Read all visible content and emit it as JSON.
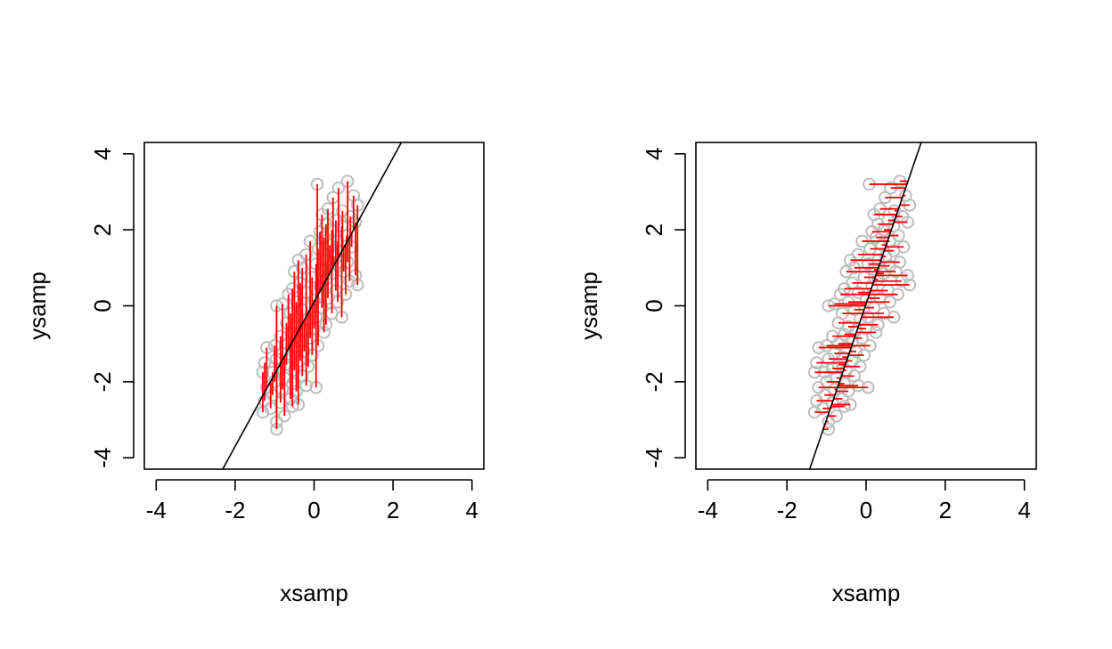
{
  "chart_data": [
    {
      "type": "scatter",
      "title": "",
      "xlabel": "xsamp",
      "ylabel": "ysamp",
      "xlim": [
        -4.3,
        4.3
      ],
      "ylim": [
        -4.3,
        4.3
      ],
      "xticks": [
        "-4",
        "-2",
        "0",
        "2",
        "4"
      ],
      "yticks": [
        "-4",
        "-2",
        "0",
        "2",
        "4"
      ],
      "grid": false,
      "legend": "none",
      "point_color": "#bebebe",
      "residual_color": "#ff0000",
      "line_color": "#000000",
      "fit_line": {
        "type": "regression of y on x",
        "slope": 1.9,
        "intercept": 0.1
      },
      "residuals": "vertical",
      "points": [
        [
          0.08,
          3.2
        ],
        [
          0.85,
          3.28
        ],
        [
          0.62,
          3.1
        ],
        [
          1.0,
          2.9
        ],
        [
          0.48,
          2.85
        ],
        [
          1.1,
          2.65
        ],
        [
          0.35,
          2.55
        ],
        [
          0.72,
          2.5
        ],
        [
          0.2,
          2.4
        ],
        [
          0.92,
          2.35
        ],
        [
          0.55,
          2.25
        ],
        [
          0.3,
          2.15
        ],
        [
          1.05,
          2.2
        ],
        [
          0.7,
          2.1
        ],
        [
          0.45,
          2.0
        ],
        [
          0.15,
          1.95
        ],
        [
          0.82,
          1.85
        ],
        [
          0.25,
          1.8
        ],
        [
          0.6,
          1.7
        ],
        [
          -0.1,
          1.7
        ],
        [
          0.4,
          1.6
        ],
        [
          0.95,
          1.55
        ],
        [
          0.1,
          1.5
        ],
        [
          0.7,
          1.45
        ],
        [
          -0.2,
          1.35
        ],
        [
          0.5,
          1.3
        ],
        [
          0.3,
          1.2
        ],
        [
          -0.4,
          1.2
        ],
        [
          0.85,
          1.15
        ],
        [
          0.05,
          1.1
        ],
        [
          0.6,
          1.05
        ],
        [
          -0.3,
          1.0
        ],
        [
          0.2,
          0.95
        ],
        [
          0.75,
          0.9
        ],
        [
          -0.5,
          0.9
        ],
        [
          0.45,
          0.85
        ],
        [
          1.05,
          0.8
        ],
        [
          -0.05,
          0.75
        ],
        [
          0.3,
          0.7
        ],
        [
          0.9,
          0.65
        ],
        [
          -0.35,
          0.6
        ],
        [
          1.1,
          0.55
        ],
        [
          0.15,
          0.5
        ],
        [
          -0.55,
          0.45
        ],
        [
          0.55,
          0.4
        ],
        [
          -0.2,
          0.35
        ],
        [
          0.8,
          0.3
        ],
        [
          -0.65,
          0.3
        ],
        [
          0.35,
          0.2
        ],
        [
          0.0,
          0.15
        ],
        [
          -0.45,
          0.1
        ],
        [
          0.6,
          0.1
        ],
        [
          -0.8,
          0.05
        ],
        [
          -0.95,
          0.0
        ],
        [
          0.2,
          -0.05
        ],
        [
          -0.3,
          -0.1
        ],
        [
          0.45,
          -0.2
        ],
        [
          -0.6,
          -0.2
        ],
        [
          0.05,
          -0.3
        ],
        [
          -0.15,
          -0.35
        ],
        [
          0.7,
          -0.3
        ],
        [
          -0.7,
          -0.45
        ],
        [
          0.3,
          -0.5
        ],
        [
          -0.45,
          -0.55
        ],
        [
          0.0,
          -0.6
        ],
        [
          -0.25,
          -0.65
        ],
        [
          -0.55,
          -0.75
        ],
        [
          0.25,
          -0.7
        ],
        [
          -0.85,
          -0.8
        ],
        [
          -0.1,
          -0.85
        ],
        [
          -0.35,
          -0.95
        ],
        [
          -0.7,
          -1.0
        ],
        [
          0.1,
          -1.05
        ],
        [
          -0.5,
          -1.1
        ],
        [
          -1.0,
          -1.05
        ],
        [
          -1.2,
          -1.1
        ],
        [
          -0.25,
          -1.2
        ],
        [
          -0.8,
          -1.25
        ],
        [
          -0.05,
          -1.3
        ],
        [
          -0.6,
          -1.35
        ],
        [
          -0.95,
          -1.4
        ],
        [
          -0.35,
          -1.45
        ],
        [
          -0.7,
          -1.55
        ],
        [
          -1.25,
          -1.5
        ],
        [
          -0.15,
          -1.6
        ],
        [
          -0.85,
          -1.65
        ],
        [
          -0.5,
          -1.7
        ],
        [
          -1.05,
          -1.75
        ],
        [
          -1.3,
          -1.75
        ],
        [
          -0.3,
          -1.85
        ],
        [
          -0.75,
          -1.9
        ],
        [
          -1.0,
          -2.0
        ],
        [
          -0.55,
          -2.05
        ],
        [
          -0.2,
          -2.1
        ],
        [
          0.05,
          -2.15
        ],
        [
          -1.2,
          -2.15
        ],
        [
          -0.8,
          -2.2
        ],
        [
          -0.45,
          -2.25
        ],
        [
          -1.05,
          -2.35
        ],
        [
          -0.6,
          -2.45
        ],
        [
          -1.25,
          -2.5
        ],
        [
          -0.85,
          -2.55
        ],
        [
          -0.4,
          -2.6
        ],
        [
          -1.1,
          -2.7
        ],
        [
          -0.55,
          -2.65
        ],
        [
          -1.3,
          -2.8
        ],
        [
          -0.75,
          -2.9
        ],
        [
          -0.95,
          -3.05
        ],
        [
          -0.95,
          -3.25
        ]
      ]
    },
    {
      "type": "scatter",
      "title": "",
      "xlabel": "xsamp",
      "ylabel": "ysamp",
      "xlim": [
        -4.3,
        4.3
      ],
      "ylim": [
        -4.3,
        4.3
      ],
      "xticks": [
        "-4",
        "-2",
        "0",
        "2",
        "4"
      ],
      "yticks": [
        "-4",
        "-2",
        "0",
        "2",
        "4"
      ],
      "grid": false,
      "legend": "none",
      "point_color": "#bebebe",
      "residual_color": "#ff0000",
      "line_color": "#000000",
      "fit_line": {
        "type": "regression of x on y",
        "slope": 3.05,
        "intercept": 0.05
      },
      "residuals": "horizontal",
      "points": [
        [
          0.08,
          3.2
        ],
        [
          0.85,
          3.28
        ],
        [
          0.62,
          3.1
        ],
        [
          1.0,
          2.9
        ],
        [
          0.48,
          2.85
        ],
        [
          1.1,
          2.65
        ],
        [
          0.35,
          2.55
        ],
        [
          0.72,
          2.5
        ],
        [
          0.2,
          2.4
        ],
        [
          0.92,
          2.35
        ],
        [
          0.55,
          2.25
        ],
        [
          0.3,
          2.15
        ],
        [
          1.05,
          2.2
        ],
        [
          0.7,
          2.1
        ],
        [
          0.45,
          2.0
        ],
        [
          0.15,
          1.95
        ],
        [
          0.82,
          1.85
        ],
        [
          0.25,
          1.8
        ],
        [
          0.6,
          1.7
        ],
        [
          -0.1,
          1.7
        ],
        [
          0.4,
          1.6
        ],
        [
          0.95,
          1.55
        ],
        [
          0.1,
          1.5
        ],
        [
          0.7,
          1.45
        ],
        [
          -0.2,
          1.35
        ],
        [
          0.5,
          1.3
        ],
        [
          0.3,
          1.2
        ],
        [
          -0.4,
          1.2
        ],
        [
          0.85,
          1.15
        ],
        [
          0.05,
          1.1
        ],
        [
          0.6,
          1.05
        ],
        [
          -0.3,
          1.0
        ],
        [
          0.2,
          0.95
        ],
        [
          0.75,
          0.9
        ],
        [
          -0.5,
          0.9
        ],
        [
          0.45,
          0.85
        ],
        [
          1.05,
          0.8
        ],
        [
          -0.05,
          0.75
        ],
        [
          0.3,
          0.7
        ],
        [
          0.9,
          0.65
        ],
        [
          -0.35,
          0.6
        ],
        [
          1.1,
          0.55
        ],
        [
          0.15,
          0.5
        ],
        [
          -0.55,
          0.45
        ],
        [
          0.55,
          0.4
        ],
        [
          -0.2,
          0.35
        ],
        [
          0.8,
          0.3
        ],
        [
          -0.65,
          0.3
        ],
        [
          0.35,
          0.2
        ],
        [
          0.0,
          0.15
        ],
        [
          -0.45,
          0.1
        ],
        [
          0.6,
          0.1
        ],
        [
          -0.8,
          0.05
        ],
        [
          -0.95,
          0.0
        ],
        [
          0.2,
          -0.05
        ],
        [
          -0.3,
          -0.1
        ],
        [
          0.45,
          -0.2
        ],
        [
          -0.6,
          -0.2
        ],
        [
          0.05,
          -0.3
        ],
        [
          -0.15,
          -0.35
        ],
        [
          0.7,
          -0.3
        ],
        [
          -0.7,
          -0.45
        ],
        [
          0.3,
          -0.5
        ],
        [
          -0.45,
          -0.55
        ],
        [
          0.0,
          -0.6
        ],
        [
          -0.25,
          -0.65
        ],
        [
          -0.55,
          -0.75
        ],
        [
          0.25,
          -0.7
        ],
        [
          -0.85,
          -0.8
        ],
        [
          -0.1,
          -0.85
        ],
        [
          -0.35,
          -0.95
        ],
        [
          -0.7,
          -1.0
        ],
        [
          0.1,
          -1.05
        ],
        [
          -0.5,
          -1.1
        ],
        [
          -1.0,
          -1.05
        ],
        [
          -1.2,
          -1.1
        ],
        [
          -0.25,
          -1.2
        ],
        [
          -0.8,
          -1.25
        ],
        [
          -0.05,
          -1.3
        ],
        [
          -0.6,
          -1.35
        ],
        [
          -0.95,
          -1.4
        ],
        [
          -0.35,
          -1.45
        ],
        [
          -0.7,
          -1.55
        ],
        [
          -1.25,
          -1.5
        ],
        [
          -0.15,
          -1.6
        ],
        [
          -0.85,
          -1.65
        ],
        [
          -0.5,
          -1.7
        ],
        [
          -1.05,
          -1.75
        ],
        [
          -1.3,
          -1.75
        ],
        [
          -0.3,
          -1.85
        ],
        [
          -0.75,
          -1.9
        ],
        [
          -1.0,
          -2.0
        ],
        [
          -0.55,
          -2.05
        ],
        [
          -0.2,
          -2.1
        ],
        [
          0.05,
          -2.15
        ],
        [
          -1.2,
          -2.15
        ],
        [
          -0.8,
          -2.2
        ],
        [
          -0.45,
          -2.25
        ],
        [
          -1.05,
          -2.35
        ],
        [
          -0.6,
          -2.45
        ],
        [
          -1.25,
          -2.5
        ],
        [
          -0.85,
          -2.55
        ],
        [
          -0.4,
          -2.6
        ],
        [
          -1.1,
          -2.7
        ],
        [
          -0.55,
          -2.65
        ],
        [
          -1.3,
          -2.8
        ],
        [
          -0.75,
          -2.9
        ],
        [
          -0.95,
          -3.05
        ],
        [
          -0.95,
          -3.25
        ]
      ]
    }
  ]
}
